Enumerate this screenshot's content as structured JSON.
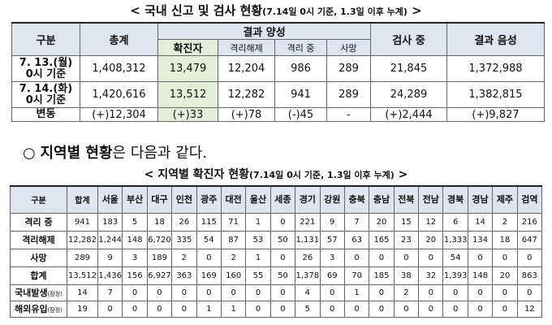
{
  "report_title": {
    "open": "<",
    "main": "국내 신고 및 검사 현황",
    "note": "(7.14일 0시 기준, 1.3일 이후 누계)",
    "close": ">"
  },
  "test_table": {
    "header": {
      "category": "구분",
      "total": "총계",
      "positive": "결과 양성",
      "positive_sub": [
        "확진자",
        "격리해제",
        "격리 중",
        "사망"
      ],
      "testing": "검사 중",
      "negative": "결과 음성"
    },
    "rows": [
      {
        "label": [
          "7. 13.(월)",
          "0시 기준"
        ],
        "cells": [
          "1,408,312",
          "13,479",
          "12,204",
          "986",
          "289",
          "21,845",
          "1,372,988"
        ]
      },
      {
        "label": [
          "7. 14.(화)",
          "0시 기준"
        ],
        "cells": [
          "1,420,616",
          "13,512",
          "12,282",
          "941",
          "289",
          "24,289",
          "1,382,815"
        ]
      },
      {
        "label": [
          "변동"
        ],
        "cells": [
          "(+)12,304",
          "(+)33",
          "(+)78",
          "(-)45",
          "-",
          "(+)2,444",
          "(+)9,827"
        ]
      }
    ]
  },
  "section_heading": {
    "bullet": "○",
    "bold": "지역별 현황",
    "rest": "은 다음과 같다."
  },
  "region_title": {
    "open": "<",
    "main": "지역별 확진자 현황",
    "note": "(7.14일 0시 기준, 1.3일 이후 누계)",
    "close": ">"
  },
  "region_table": {
    "header": [
      "구분",
      "합계",
      "서울",
      "부산",
      "대구",
      "인천",
      "광주",
      "대전",
      "울산",
      "세종",
      "경기",
      "강원",
      "충북",
      "충남",
      "전북",
      "전남",
      "경북",
      "경남",
      "제주",
      "검역"
    ],
    "rows": [
      {
        "label": "격리 중",
        "cells": [
          "941",
          "183",
          "5",
          "18",
          "26",
          "115",
          "71",
          "1",
          "0",
          "221",
          "9",
          "7",
          "20",
          "15",
          "12",
          "6",
          "14",
          "2",
          "216"
        ]
      },
      {
        "label": "격리해제",
        "cells": [
          "12,282",
          "1,244",
          "148",
          "6,720",
          "335",
          "54",
          "87",
          "53",
          "50",
          "1,131",
          "57",
          "63",
          "165",
          "23",
          "20",
          "1,333",
          "134",
          "18",
          "647"
        ]
      },
      {
        "label": "사망",
        "cells": [
          "289",
          "9",
          "3",
          "189",
          "2",
          "0",
          "2",
          "1",
          "0",
          "26",
          "3",
          "0",
          "0",
          "0",
          "0",
          "54",
          "0",
          "0",
          "0"
        ]
      },
      {
        "label": "합계",
        "cells": [
          "13,512",
          "1,436",
          "156",
          "6,927",
          "363",
          "169",
          "160",
          "55",
          "50",
          "1,378",
          "69",
          "70",
          "185",
          "38",
          "32",
          "1,393",
          "148",
          "20",
          "863"
        ]
      },
      {
        "label": "국내발생",
        "note": "(잠정)",
        "cells": [
          "14",
          "7",
          "0",
          "0",
          "0",
          "0",
          "0",
          "0",
          "0",
          "4",
          "0",
          "1",
          "0",
          "2",
          "0",
          "0",
          "0",
          "0",
          "0"
        ]
      },
      {
        "label": "해외유입",
        "note": "(잠정)",
        "cells": [
          "19",
          "0",
          "0",
          "0",
          "0",
          "1",
          "1",
          "0",
          "0",
          "5",
          "0",
          "0",
          "0",
          "0",
          "0",
          "0",
          "0",
          "0",
          "12"
        ]
      }
    ]
  }
}
